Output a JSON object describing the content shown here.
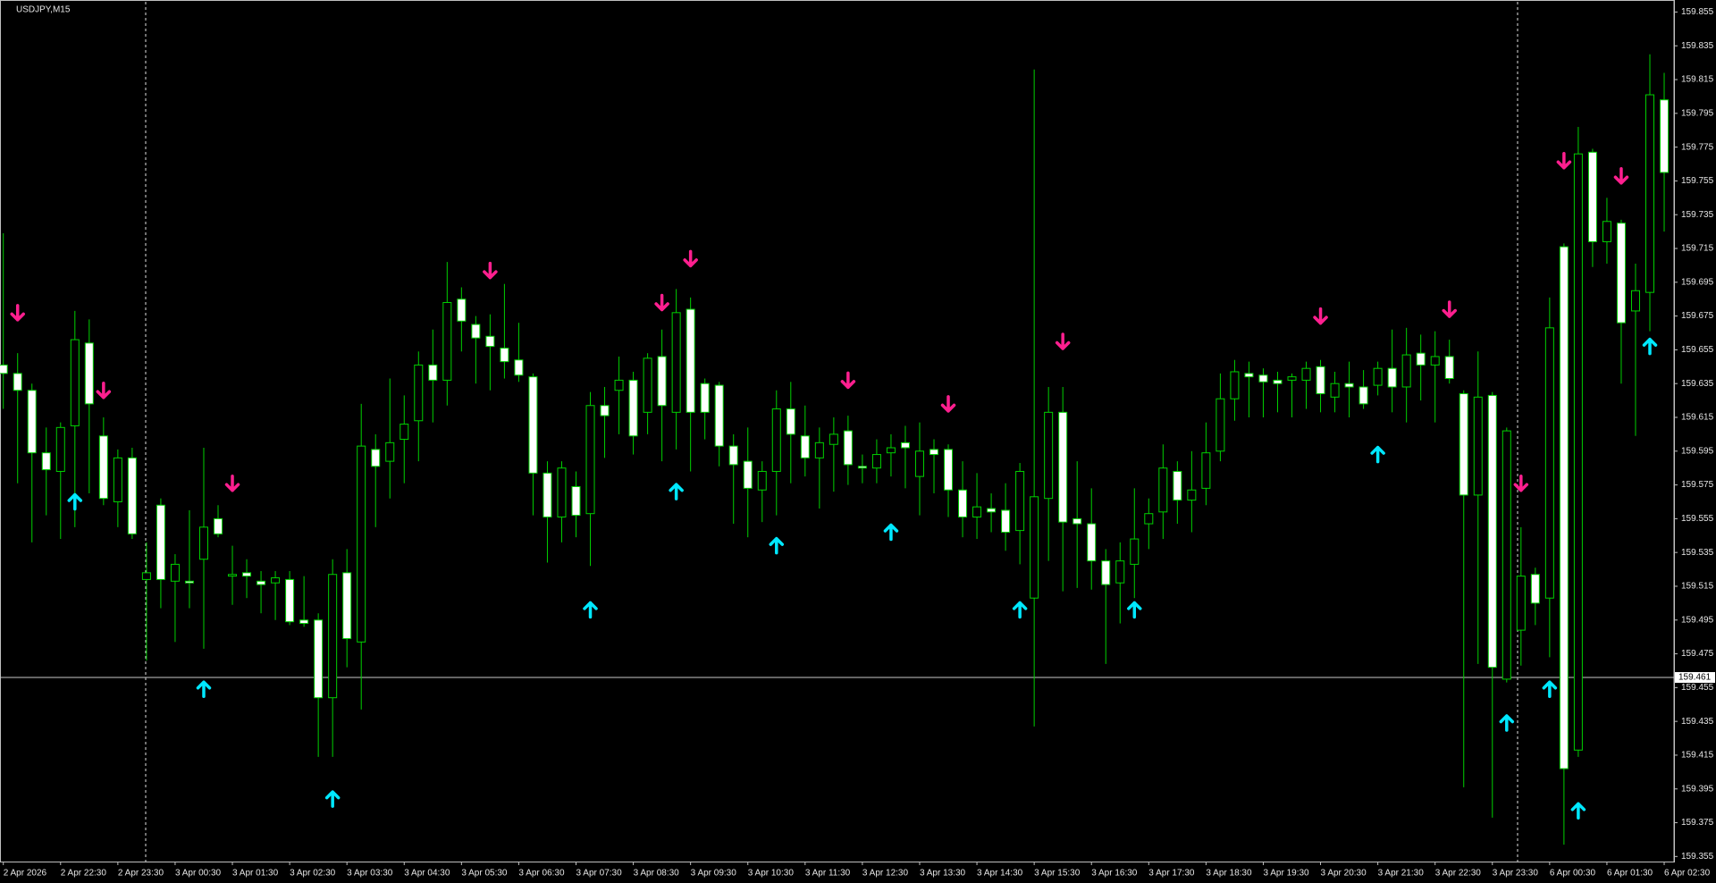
{
  "chart_data": {
    "type": "candlestick",
    "title": "USDJPY,M15",
    "categories": [
      "2 Apr 2026",
      null,
      null,
      null,
      "2 Apr 22:30",
      null,
      null,
      null,
      "2 Apr 23:30",
      null,
      null,
      null,
      "3 Apr 00:30",
      null,
      null,
      null,
      "3 Apr 01:30",
      null,
      null,
      null,
      "3 Apr 02:30",
      null,
      null,
      null,
      "3 Apr 03:30",
      null,
      null,
      null,
      "3 Apr 04:30",
      null,
      null,
      null,
      "3 Apr 05:30",
      null,
      null,
      null,
      "3 Apr 06:30",
      null,
      null,
      null,
      "3 Apr 07:30",
      null,
      null,
      null,
      "3 Apr 08:30",
      null,
      null,
      null,
      "3 Apr 09:30",
      null,
      null,
      null,
      "3 Apr 10:30",
      null,
      null,
      null,
      "3 Apr 11:30",
      null,
      null,
      null,
      "3 Apr 12:30",
      null,
      null,
      null,
      "3 Apr 13:30",
      null,
      null,
      null,
      "3 Apr 14:30",
      null,
      null,
      null,
      "3 Apr 15:30",
      null,
      null,
      null,
      "3 Apr 16:30",
      null,
      null,
      null,
      "3 Apr 17:30",
      null,
      null,
      null,
      "3 Apr 18:30",
      null,
      null,
      null,
      "3 Apr 19:30",
      null,
      null,
      null,
      "3 Apr 20:30",
      null,
      null,
      null,
      "3 Apr 21:30",
      null,
      null,
      null,
      "3 Apr 22:30",
      null,
      null,
      null,
      "3 Apr 23:30",
      null,
      null,
      null,
      "6 Apr 00:30",
      null,
      null,
      null,
      "6 Apr 01:30",
      null,
      null,
      null,
      "6 Apr 02:30"
    ],
    "open": [
      159.646,
      159.641,
      159.631,
      159.594,
      159.583,
      159.61,
      159.659,
      159.604,
      159.565,
      159.591,
      159.519,
      159.563,
      159.518,
      159.518,
      159.531,
      159.555,
      159.521,
      159.523,
      159.518,
      159.517,
      159.519,
      159.495,
      159.495,
      159.449,
      159.523,
      159.482,
      159.596,
      159.589,
      159.602,
      159.613,
      159.646,
      159.637,
      159.685,
      159.67,
      159.663,
      159.656,
      159.649,
      159.639,
      159.582,
      159.556,
      159.574,
      159.558,
      159.622,
      159.631,
      159.637,
      159.618,
      159.651,
      159.618,
      159.679,
      159.635,
      159.634,
      159.598,
      159.589,
      159.572,
      159.583,
      159.62,
      159.604,
      159.591,
      159.599,
      159.607,
      159.586,
      159.585,
      159.594,
      159.6,
      159.58,
      159.596,
      159.596,
      159.572,
      159.556,
      159.561,
      159.56,
      159.548,
      159.508,
      159.567,
      159.618,
      159.555,
      159.552,
      159.53,
      159.517,
      159.528,
      159.552,
      159.559,
      159.583,
      159.566,
      159.573,
      159.595,
      159.626,
      159.641,
      159.64,
      159.637,
      159.637,
      159.637,
      159.645,
      159.627,
      159.635,
      159.633,
      159.634,
      159.644,
      159.633,
      159.653,
      159.646,
      159.651,
      159.629,
      159.569,
      159.628,
      159.46,
      159.489,
      159.522,
      159.508,
      159.716,
      159.418,
      159.772,
      159.719,
      159.73,
      159.678,
      159.689,
      159.803
    ],
    "high": [
      159.724,
      159.653,
      159.635,
      159.609,
      159.612,
      159.678,
      159.673,
      159.615,
      159.596,
      159.597,
      159.541,
      159.567,
      159.534,
      159.56,
      159.597,
      159.563,
      159.539,
      159.531,
      159.524,
      159.524,
      159.524,
      159.521,
      159.499,
      159.531,
      159.537,
      159.623,
      159.605,
      159.638,
      159.628,
      159.654,
      159.667,
      159.707,
      159.692,
      159.675,
      159.676,
      159.694,
      159.671,
      159.641,
      159.589,
      159.589,
      159.583,
      159.63,
      159.633,
      159.651,
      159.642,
      159.653,
      159.667,
      159.691,
      159.686,
      159.638,
      159.636,
      159.605,
      159.609,
      159.589,
      159.631,
      159.636,
      159.622,
      159.609,
      159.615,
      159.616,
      159.593,
      159.602,
      159.605,
      159.61,
      159.612,
      159.602,
      159.599,
      159.589,
      159.582,
      159.57,
      159.576,
      159.588,
      159.821,
      159.633,
      159.633,
      159.589,
      159.573,
      159.537,
      159.541,
      159.573,
      159.567,
      159.599,
      159.589,
      159.595,
      159.612,
      159.641,
      159.649,
      159.648,
      159.644,
      159.642,
      159.641,
      159.648,
      159.649,
      159.642,
      159.648,
      159.643,
      159.648,
      159.667,
      159.668,
      159.664,
      159.666,
      159.661,
      159.631,
      159.654,
      159.63,
      159.609,
      159.55,
      159.526,
      159.686,
      159.718,
      159.787,
      159.774,
      159.745,
      159.732,
      159.706,
      159.83,
      159.819
    ],
    "low": [
      159.62,
      159.576,
      159.541,
      159.557,
      159.543,
      159.55,
      159.57,
      159.563,
      159.55,
      159.543,
      159.471,
      159.502,
      159.482,
      159.502,
      159.478,
      159.544,
      159.504,
      159.508,
      159.499,
      159.495,
      159.492,
      159.491,
      159.414,
      159.414,
      159.467,
      159.442,
      159.55,
      159.567,
      159.576,
      159.589,
      159.612,
      159.622,
      159.654,
      159.635,
      159.631,
      159.638,
      159.636,
      159.557,
      159.529,
      159.541,
      159.544,
      159.527,
      159.591,
      159.605,
      159.593,
      159.605,
      159.589,
      159.596,
      159.583,
      159.602,
      159.586,
      159.552,
      159.544,
      159.553,
      159.557,
      159.576,
      159.58,
      159.561,
      159.571,
      159.575,
      159.576,
      159.576,
      159.58,
      159.573,
      159.557,
      159.57,
      159.556,
      159.544,
      159.543,
      159.547,
      159.536,
      159.528,
      159.432,
      159.53,
      159.512,
      159.514,
      159.513,
      159.469,
      159.493,
      159.508,
      159.537,
      159.543,
      159.552,
      159.547,
      159.563,
      159.589,
      159.613,
      159.615,
      159.615,
      159.618,
      159.615,
      159.62,
      159.618,
      159.618,
      159.615,
      159.62,
      159.628,
      159.618,
      159.612,
      159.625,
      159.612,
      159.635,
      159.396,
      159.469,
      159.378,
      159.458,
      159.468,
      159.492,
      159.473,
      159.362,
      159.414,
      159.704,
      159.706,
      159.635,
      159.604,
      159.666,
      159.725
    ],
    "close": [
      159.641,
      159.631,
      159.594,
      159.584,
      159.609,
      159.661,
      159.623,
      159.567,
      159.591,
      159.546,
      159.523,
      159.519,
      159.528,
      159.517,
      159.55,
      159.546,
      159.522,
      159.521,
      159.516,
      159.52,
      159.494,
      159.493,
      159.449,
      159.522,
      159.484,
      159.598,
      159.586,
      159.6,
      159.611,
      159.646,
      159.637,
      159.683,
      159.672,
      159.662,
      159.657,
      159.648,
      159.64,
      159.582,
      159.556,
      159.585,
      159.557,
      159.622,
      159.616,
      159.637,
      159.604,
      159.65,
      159.622,
      159.677,
      159.618,
      159.618,
      159.598,
      159.587,
      159.573,
      159.583,
      159.62,
      159.605,
      159.591,
      159.6,
      159.605,
      159.587,
      159.585,
      159.593,
      159.597,
      159.597,
      159.595,
      159.593,
      159.572,
      159.556,
      159.562,
      159.559,
      159.547,
      159.583,
      159.568,
      159.618,
      159.553,
      159.552,
      159.53,
      159.516,
      159.53,
      159.543,
      159.558,
      159.585,
      159.566,
      159.572,
      159.594,
      159.626,
      159.642,
      159.639,
      159.636,
      159.635,
      159.639,
      159.644,
      159.629,
      159.635,
      159.633,
      159.623,
      159.644,
      159.633,
      159.652,
      159.646,
      159.651,
      159.638,
      159.569,
      159.627,
      159.467,
      159.607,
      159.521,
      159.505,
      159.668,
      159.407,
      159.771,
      159.719,
      159.731,
      159.671,
      159.69,
      159.806,
      159.76
    ],
    "bull_fill": "#000000",
    "bear_fill": "#ffffff",
    "outline_color": "#00d000",
    "ylim": [
      159.352,
      159.86
    ],
    "yticks": [
      159.855,
      159.835,
      159.815,
      159.795,
      159.775,
      159.755,
      159.735,
      159.715,
      159.695,
      159.675,
      159.655,
      159.635,
      159.615,
      159.595,
      159.575,
      159.555,
      159.535,
      159.515,
      159.495,
      159.475,
      159.455,
      159.435,
      159.415,
      159.395,
      159.375,
      159.355
    ],
    "bid": 159.461,
    "sell_signals": {
      "color": "#ff1f8f",
      "x": [
        1,
        7,
        16,
        34,
        46,
        48,
        59,
        66,
        74,
        92,
        101,
        106,
        109,
        113
      ],
      "values": [
        159.677,
        159.631,
        159.576,
        159.702,
        159.683,
        159.709,
        159.637,
        159.623,
        159.66,
        159.675,
        159.679,
        159.576,
        159.767,
        159.758
      ]
    },
    "buy_signals": {
      "color": "#00e8ff",
      "x": [
        5,
        14,
        23,
        41,
        47,
        54,
        62,
        71,
        79,
        96,
        105,
        108,
        110,
        115
      ],
      "values": [
        159.565,
        159.454,
        159.389,
        159.501,
        159.571,
        159.539,
        159.547,
        159.501,
        159.501,
        159.593,
        159.434,
        159.454,
        159.382,
        159.657
      ]
    }
  }
}
